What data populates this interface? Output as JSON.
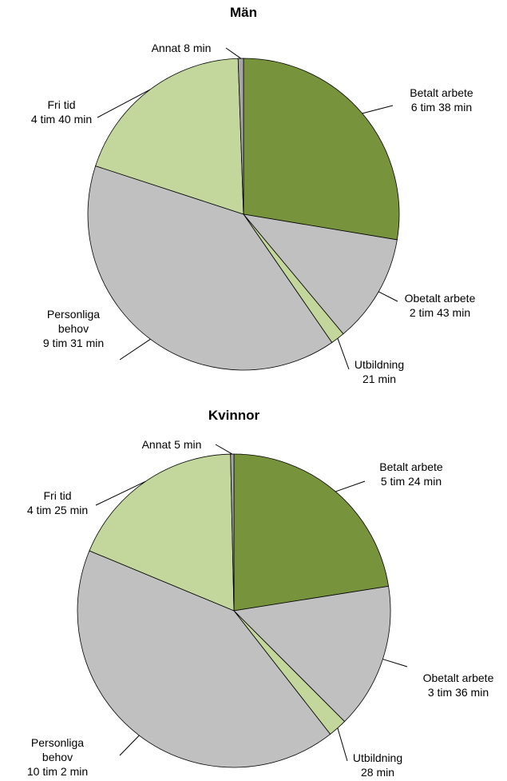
{
  "chart_data": [
    {
      "type": "pie",
      "title": "Män",
      "categories": [
        "Betalt arbete",
        "Obetalt arbete",
        "Utbildning",
        "Personliga behov",
        "Fri tid",
        "Annat"
      ],
      "values": [
        398,
        163,
        21,
        571,
        280,
        8
      ],
      "value_labels": [
        "6 tim 38 min",
        "2 tim 43 min",
        "21 min",
        "9 tim 31 min",
        "4 tim 40 min",
        "8 min"
      ],
      "colors": [
        "#77933c",
        "#c0c0c0",
        "#c3d69b",
        "#c0c0c0",
        "#c3d69b",
        "#a6a6a6"
      ]
    },
    {
      "type": "pie",
      "title": "Kvinnor",
      "categories": [
        "Betalt arbete",
        "Obetalt arbete",
        "Utbildning",
        "Personliga behov",
        "Fri tid",
        "Annat"
      ],
      "values": [
        324,
        216,
        28,
        602,
        265,
        5
      ],
      "value_labels": [
        "5 tim 24 min",
        "3 tim 36 min",
        "28 min",
        "10 tim 2 min",
        "4 tim 25 min",
        "5 min"
      ],
      "colors": [
        "#77933c",
        "#c0c0c0",
        "#c3d69b",
        "#c0c0c0",
        "#c3d69b",
        "#a6a6a6"
      ]
    }
  ]
}
